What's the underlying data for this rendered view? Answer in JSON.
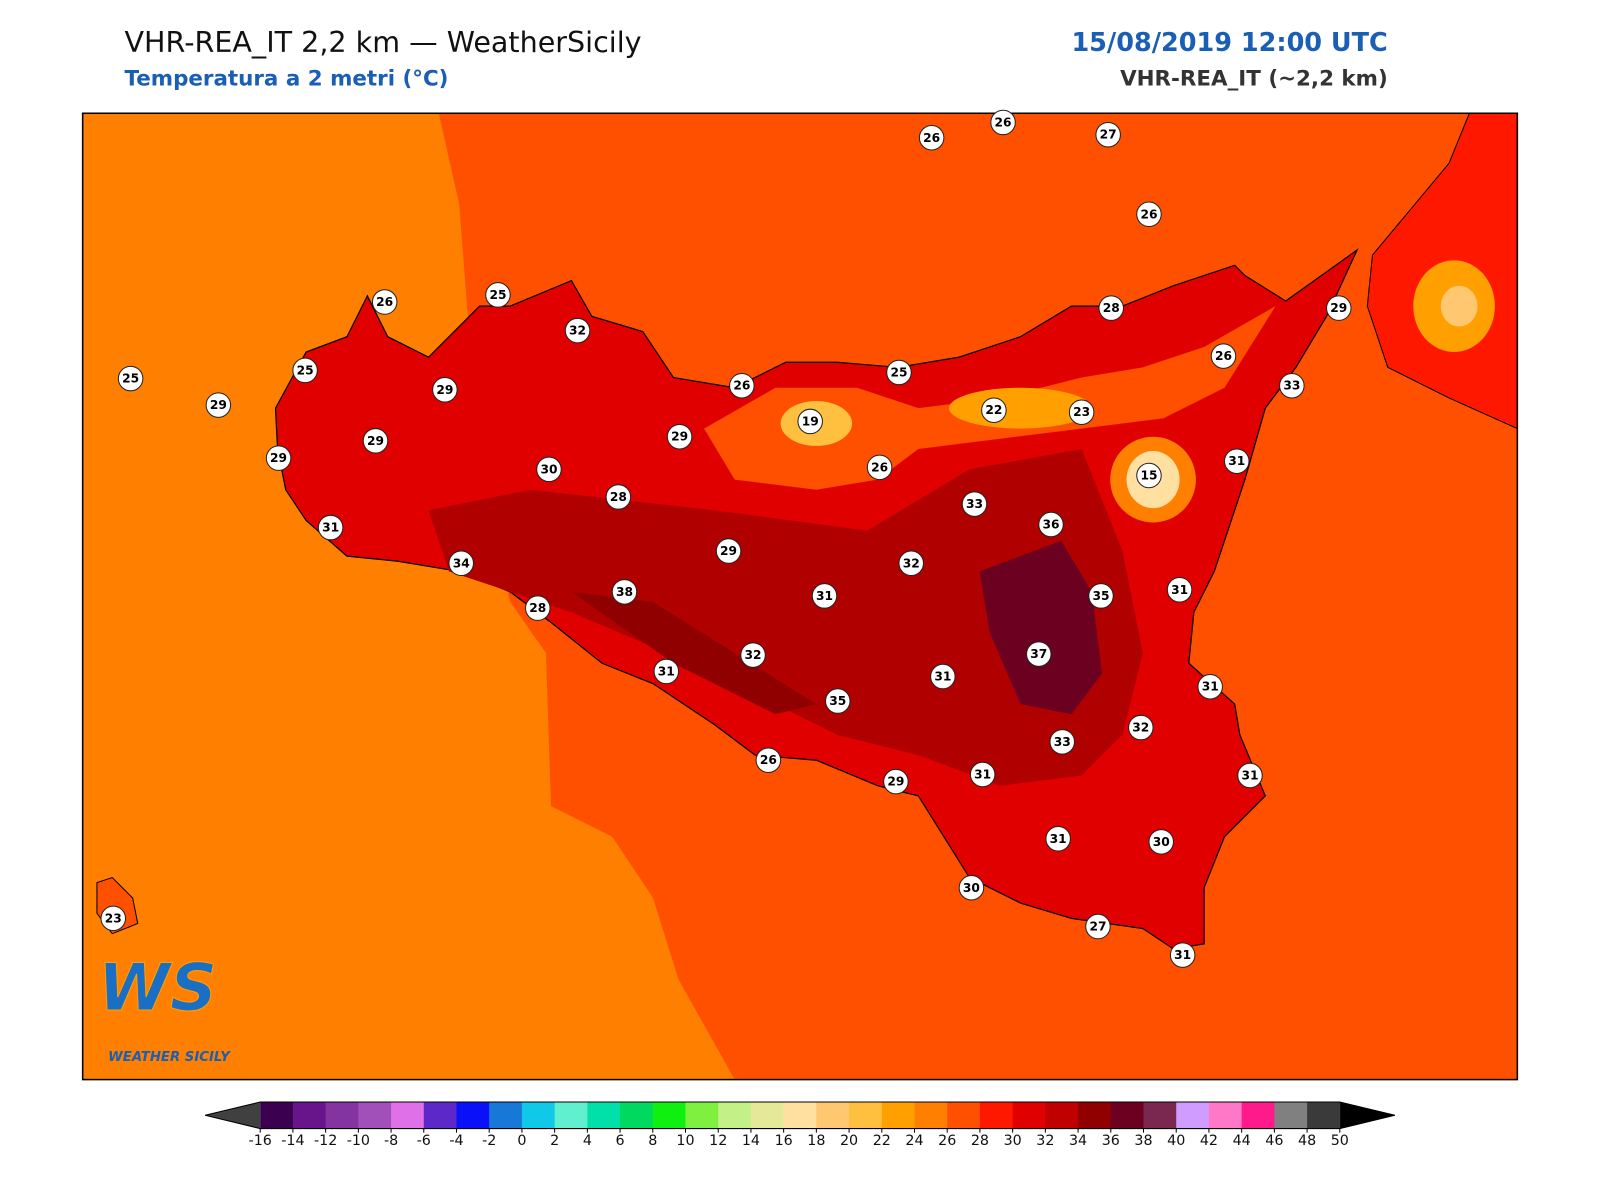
{
  "header": {
    "title": "VHR-REA_IT 2,2 km — WeatherSicily",
    "subtitle": "Temperatura a 2 metri (°C)",
    "datetime": "15/08/2019 12:00 UTC",
    "model": "VHR-REA_IT (~2,2 km)"
  },
  "map": {
    "station_values": [
      26,
      26,
      27,
      26,
      26,
      25,
      32,
      25,
      25,
      29,
      29,
      29,
      29,
      30,
      29,
      26,
      19,
      25,
      26,
      28,
      31,
      34,
      29,
      38,
      28,
      31,
      32,
      33,
      22,
      23,
      28,
      26,
      29,
      33,
      31,
      15,
      36,
      35,
      31,
      37,
      32,
      31,
      31,
      35,
      31,
      32,
      33,
      26,
      29,
      31,
      31,
      31,
      30,
      30,
      23,
      27,
      31
    ]
  },
  "colorbar": {
    "ticks": [
      -16,
      -14,
      -12,
      -10,
      -8,
      -6,
      -4,
      -2,
      0,
      2,
      4,
      6,
      8,
      10,
      12,
      14,
      16,
      18,
      20,
      22,
      24,
      26,
      28,
      30,
      32,
      34,
      36,
      38,
      40,
      42,
      44,
      46,
      48,
      50
    ],
    "colors": [
      "#3c0050",
      "#68148a",
      "#8434a0",
      "#a050b8",
      "#e070e8",
      "#5c28c8",
      "#0a10f8",
      "#1878d8",
      "#10c8e8",
      "#60f0d0",
      "#00e0a8",
      "#00d860",
      "#10f010",
      "#80f040",
      "#c4f088",
      "#e4e898",
      "#ffe0a0",
      "#ffc870",
      "#ffc040",
      "#ffa000",
      "#ff8000",
      "#ff5000",
      "#ff1800",
      "#e00000",
      "#c00000",
      "#900000",
      "#6c0020",
      "#7a2850",
      "#d09cff",
      "#ff78c8",
      "#ff1a8c",
      "#808080",
      "#3a3a3a"
    ],
    "under_color": "#404040",
    "over_color": "#000000"
  },
  "logo": {
    "letters": "WS",
    "name": "WEATHER SICILY"
  }
}
